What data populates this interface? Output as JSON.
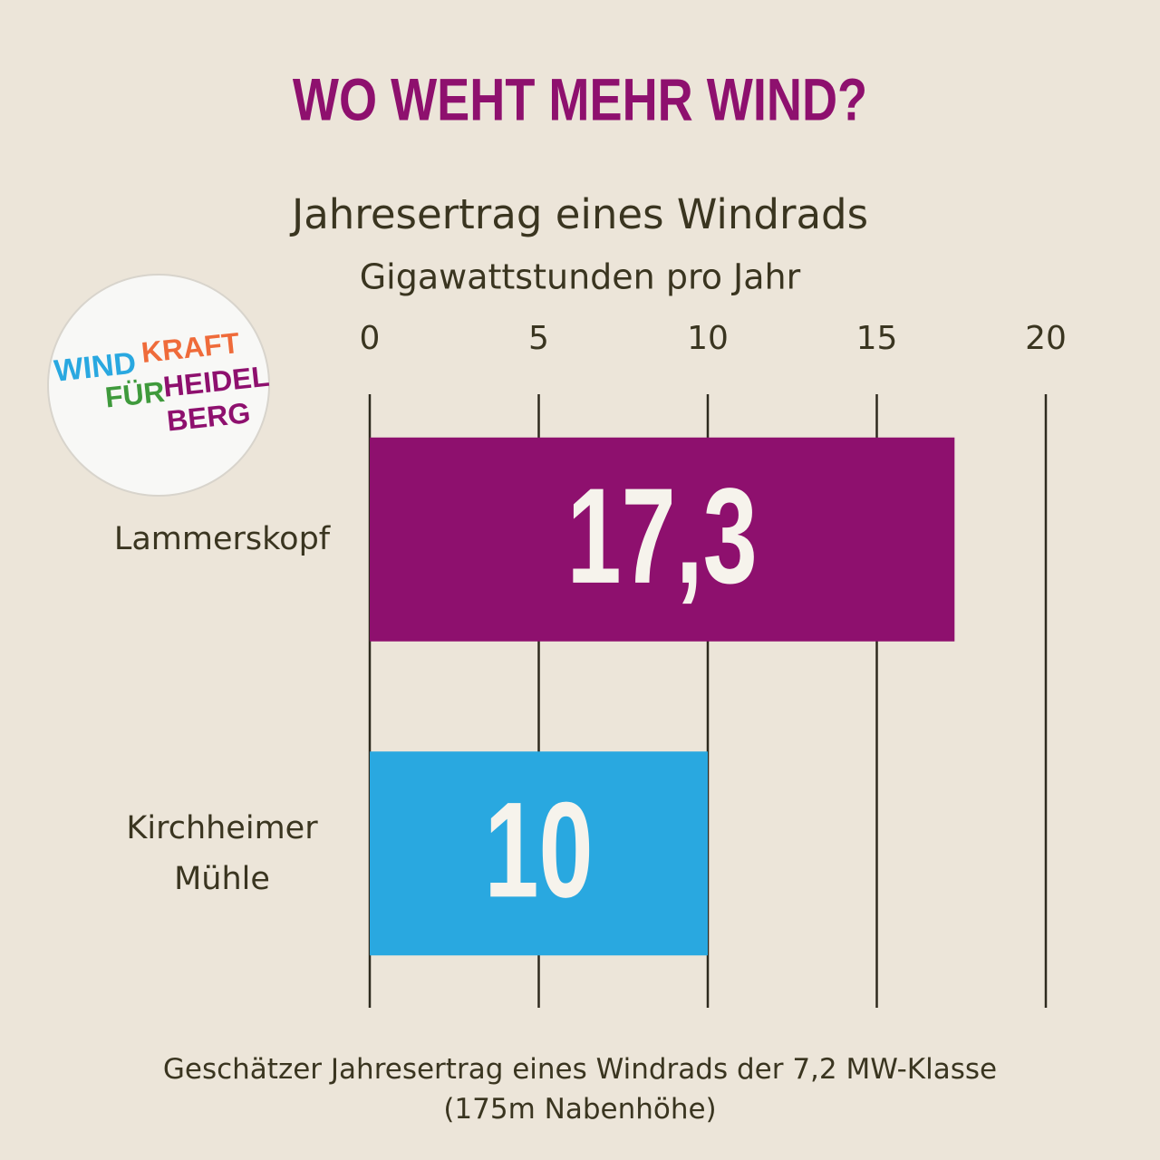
{
  "chart_data": {
    "type": "bar",
    "orientation": "horizontal",
    "title": "WO WEHT MEHR WIND?",
    "subtitle": "Jahresertrag eines Windrads",
    "x_label": "Gigawattstunden pro Jahr",
    "categories": [
      "Lammerskopf",
      "Kirchheimer Mühle"
    ],
    "values": [
      17.3,
      10
    ],
    "value_labels": [
      "17,3",
      "10"
    ],
    "colors": [
      "#8e106e",
      "#29a8e0"
    ],
    "xlim": [
      0,
      20
    ],
    "xticks": [
      0,
      5,
      10,
      15,
      20
    ],
    "grid": true,
    "footnote": "Geschätzer Jahresertrag eines Windrads der 7,2 MW-Klasse (175m Nabenhöhe)"
  },
  "logo": {
    "line1a": "WIND",
    "line1b": "KRAFT",
    "line2a": "FÜR",
    "line2b": "HEIDEL",
    "line3": "BERG"
  }
}
